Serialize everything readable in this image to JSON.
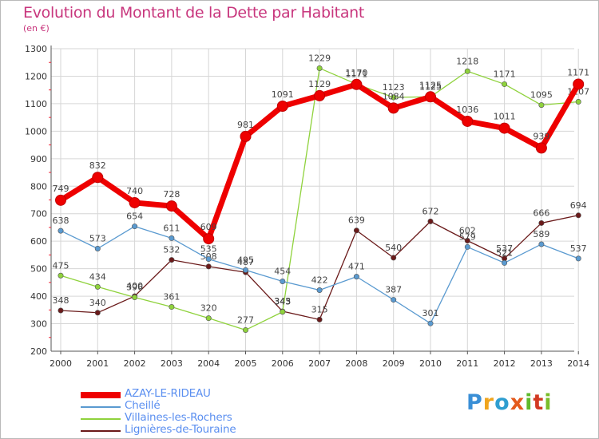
{
  "header": {
    "title": "Evolution du Montant de la Dette par Habitant",
    "unit": "(en €)"
  },
  "logo": {
    "text": "Proxiti",
    "letter_colors": [
      "#3a8fd6",
      "#f0a51e",
      "#2f9ed0",
      "#e45a1c",
      "#5fba2c",
      "#d23a22",
      "#7bbd2a"
    ]
  },
  "chart_data": {
    "type": "line",
    "title": "Evolution du Montant de la Dette par Habitant",
    "subtitle": "(en €)",
    "xlabel": "",
    "ylabel": "",
    "x": [
      2000,
      2001,
      2002,
      2003,
      2004,
      2005,
      2006,
      2007,
      2008,
      2009,
      2010,
      2011,
      2012,
      2013,
      2014
    ],
    "ylim": [
      200,
      1300
    ],
    "yticks": [
      200,
      300,
      400,
      500,
      600,
      700,
      800,
      900,
      1000,
      1100,
      1200,
      1300
    ],
    "grid": true,
    "legend": "bottom-left",
    "series": [
      {
        "name": "AZAY-LE-RIDEAU",
        "color": "#ee0000",
        "values": [
          749,
          832,
          740,
          728,
          609,
          981,
          1091,
          1129,
          1170,
          1084,
          1125,
          1036,
          1011,
          939,
          1171
        ]
      },
      {
        "name": "Cheillé",
        "color": "#5a9ad0",
        "values": [
          638,
          573,
          654,
          611,
          535,
          495,
          454,
          422,
          471,
          387,
          301,
          579,
          521,
          589,
          537
        ]
      },
      {
        "name": "Villaines-les-Rochers",
        "color": "#8fd23c",
        "values": [
          475,
          434,
          396,
          361,
          320,
          277,
          343,
          1229,
          1171,
          1123,
          1125,
          1218,
          1171,
          1095,
          1107
        ]
      },
      {
        "name": "Lignières-de-Touraine",
        "color": "#6a1a1a",
        "values": [
          348,
          340,
          400,
          532,
          508,
          487,
          345,
          315,
          639,
          540,
          672,
          602,
          537,
          666,
          694
        ]
      }
    ]
  }
}
